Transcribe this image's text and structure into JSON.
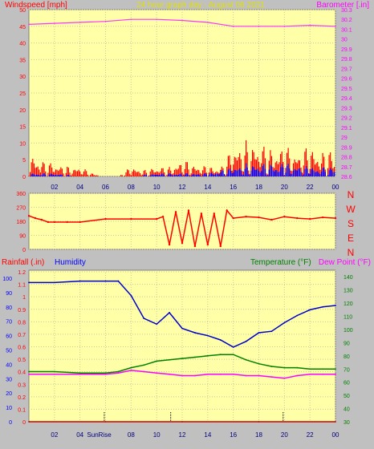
{
  "chart_data": [
    {
      "type": "line",
      "title": "24 hour graph day - August 06 2021",
      "left_label": "Windspeed [mph]",
      "right_label": "Barometer [.in]",
      "x_ticks": [
        "02",
        "04",
        "06",
        "08",
        "10",
        "12",
        "14",
        "16",
        "18",
        "20",
        "22",
        "00"
      ],
      "y_left_ticks": [
        0,
        5,
        10,
        15,
        20,
        25,
        30,
        35,
        40,
        45,
        50
      ],
      "y_left_range": [
        0,
        50
      ],
      "y_right_ticks": [
        "28.6",
        "28.7",
        "28.8",
        "28.9",
        "29",
        "29.1",
        "29.2",
        "29.3",
        "29.4",
        "29.5",
        "29.6",
        "29.7",
        "29.8",
        "29.9",
        "30",
        "30.1",
        "30.2",
        "30.3"
      ],
      "y_right_range": [
        28.6,
        30.3
      ],
      "series": [
        {
          "name": "Barometer",
          "color": "#ff33ff",
          "axis": "right",
          "x": [
            0,
            2,
            4,
            6,
            8,
            10,
            12,
            14,
            16,
            18,
            20,
            22,
            24
          ],
          "values": [
            30.15,
            30.16,
            30.17,
            30.18,
            30.2,
            30.2,
            30.19,
            30.17,
            30.13,
            30.13,
            30.13,
            30.14,
            30.13
          ]
        },
        {
          "name": "Wind gust",
          "color": "#ff0000",
          "axis": "left",
          "x": [
            0,
            1,
            2,
            3,
            4,
            5,
            6,
            7,
            8,
            9,
            10,
            11,
            12,
            13,
            14,
            15,
            16,
            17,
            18,
            19,
            20,
            21,
            22,
            23,
            24
          ],
          "values": [
            7,
            5,
            4,
            3,
            3,
            1,
            0,
            0,
            3,
            2,
            3,
            3,
            5,
            4,
            3,
            3,
            9,
            11,
            10,
            9,
            9,
            8,
            9,
            8,
            8
          ]
        },
        {
          "name": "Wind speed",
          "color": "#0000ff",
          "axis": "left",
          "x": [
            0,
            2,
            4,
            6,
            8,
            10,
            12,
            14,
            16,
            17,
            18,
            20,
            22,
            24
          ],
          "values": [
            1,
            1,
            0,
            0,
            0,
            1,
            1,
            1,
            3,
            4,
            4,
            4,
            3,
            3
          ]
        }
      ]
    },
    {
      "type": "scatter",
      "y_ticks": [
        0,
        90,
        180,
        270,
        360
      ],
      "y_range": [
        0,
        360
      ],
      "compass_labels": [
        "N",
        "W",
        "S",
        "E",
        "N"
      ],
      "series": [
        {
          "name": "Wind direction",
          "color": "#ff0000",
          "x": [
            0,
            0.5,
            1,
            1.5,
            2,
            3,
            4,
            6,
            8,
            10,
            10.5,
            11,
            11.5,
            12,
            12.5,
            13,
            13.5,
            14,
            14.5,
            15,
            15.5,
            16,
            17,
            18,
            19,
            20,
            21,
            22,
            23,
            24
          ],
          "values": [
            215,
            200,
            190,
            175,
            175,
            175,
            175,
            195,
            195,
            195,
            210,
            30,
            240,
            40,
            250,
            20,
            230,
            30,
            230,
            20,
            250,
            200,
            210,
            205,
            190,
            210,
            200,
            195,
            205,
            200
          ]
        }
      ]
    },
    {
      "type": "line",
      "left_label_1": "Rainfall (.in)",
      "left_label_2": "Humidity",
      "right_label_1": "Temperature (°F)",
      "right_label_2": "Dew Point (°F)",
      "x_ticks": [
        "02",
        "04",
        "SunRise",
        "08",
        "10",
        "12",
        "14",
        "16",
        "18",
        "20",
        "22",
        "00"
      ],
      "sunrise_text": "SunRise",
      "y_rain_ticks": [
        "0",
        "0.1",
        "0.2",
        "0.3",
        "0.4",
        "0.5",
        "0.6",
        "0.7",
        "0.8",
        "0.9",
        "1",
        "1.1",
        "1.2"
      ],
      "y_hum_ticks": [
        0,
        10,
        20,
        30,
        40,
        50,
        60,
        70,
        80,
        90,
        100
      ],
      "y_temp_ticks": [
        30,
        40,
        50,
        60,
        70,
        80,
        90,
        100,
        110,
        120,
        130,
        140
      ],
      "series": [
        {
          "name": "Humidity",
          "color": "#0000cc",
          "axis": "humidity",
          "x": [
            0,
            2,
            4,
            6,
            7,
            8,
            9,
            10,
            11,
            12,
            13,
            14,
            15,
            16,
            17,
            18,
            19,
            20,
            21,
            22,
            23,
            24
          ],
          "values": [
            97,
            97,
            98,
            98,
            98,
            88,
            72,
            68,
            76,
            65,
            62,
            60,
            57,
            52,
            56,
            62,
            63,
            69,
            74,
            78,
            80,
            81
          ]
        },
        {
          "name": "Temperature",
          "color": "#008000",
          "axis": "temp",
          "x": [
            0,
            2,
            4,
            6,
            7,
            8,
            9,
            10,
            11,
            12,
            13,
            14,
            15,
            16,
            17,
            18,
            19,
            20,
            21,
            22,
            23,
            24
          ],
          "values": [
            68,
            68,
            67,
            67,
            68,
            71,
            73,
            76,
            77,
            78,
            79,
            80,
            81,
            81,
            77,
            74,
            72,
            71,
            71,
            70,
            70,
            70
          ],
          "unit": "°F"
        },
        {
          "name": "Dew Point",
          "color": "#ff00ff",
          "axis": "temp",
          "x": [
            0,
            2,
            4,
            6,
            7,
            8,
            9,
            10,
            11,
            12,
            13,
            14,
            15,
            16,
            17,
            18,
            19,
            20,
            21,
            22,
            23,
            24
          ],
          "values": [
            66,
            66,
            66,
            66,
            67,
            69,
            68,
            67,
            66,
            65,
            65,
            66,
            66,
            66,
            65,
            65,
            64,
            63,
            65,
            66,
            66,
            66
          ],
          "unit": "°F"
        },
        {
          "name": "Rainfall",
          "color": "#cc0000",
          "axis": "rain",
          "x": [
            0,
            6,
            12,
            18,
            24
          ],
          "values": [
            0,
            0,
            0,
            0,
            0
          ]
        }
      ],
      "markers_x": [
        5.9,
        11.1,
        19.9
      ]
    }
  ]
}
